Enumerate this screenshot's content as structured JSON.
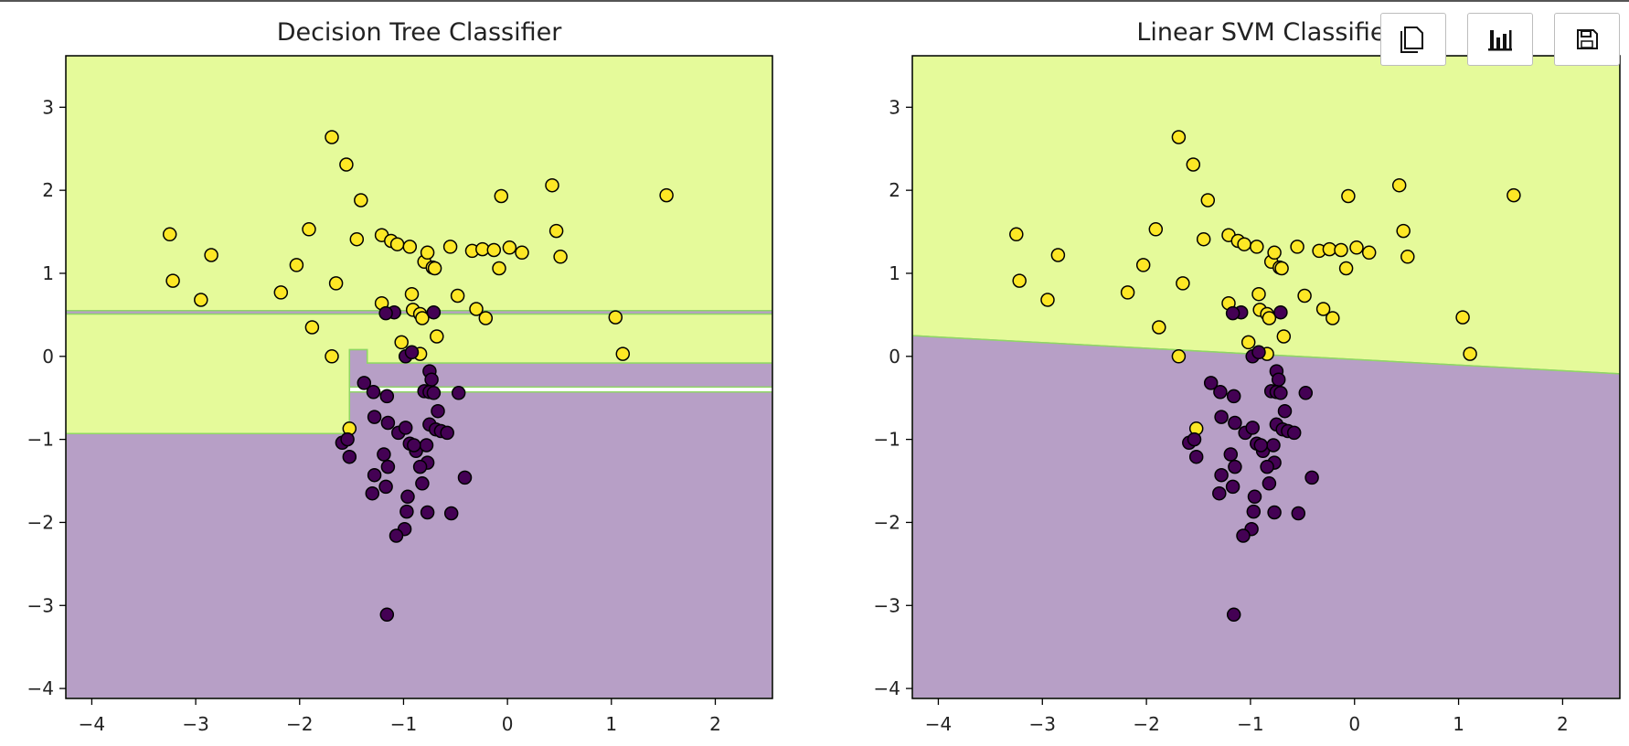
{
  "toolbar": {
    "buttons": [
      {
        "name": "copy-button",
        "icon": "copy-icon"
      },
      {
        "name": "chart-button",
        "icon": "bar-chart-icon"
      },
      {
        "name": "save-button",
        "icon": "floppy-disk-icon"
      }
    ]
  },
  "colors": {
    "class0_region": "#b79fc6",
    "class1_region": "#e5fa9a",
    "class0_point": "#440154",
    "class1_point": "#fde725",
    "boundary": "#8fd665",
    "point_edge": "#000000"
  },
  "chart_data": [
    {
      "type": "scatter",
      "title": "Decision Tree Classifier",
      "xlabel": "",
      "ylabel": "",
      "xlim": [
        -4.25,
        2.55
      ],
      "ylim": [
        -4.12,
        3.62
      ],
      "xticks": [
        -4,
        -3,
        -2,
        -1,
        0,
        1,
        2
      ],
      "xtick_labels": [
        "−4",
        "−3",
        "−2",
        "−1",
        "0",
        "1",
        "2"
      ],
      "yticks": [
        3,
        2,
        1,
        0,
        -1,
        -2,
        -3,
        -4
      ],
      "ytick_labels": [
        "3",
        "2",
        "1",
        "0",
        "−1",
        "−2",
        "−3",
        "−4"
      ],
      "grid": false,
      "decision_regions": [
        {
          "class": 1,
          "polygon": [
            [
              -4.25,
              3.62
            ],
            [
              2.55,
              3.62
            ],
            [
              2.55,
              -0.08
            ],
            [
              -1.35,
              -0.08
            ],
            [
              -1.35,
              0.08
            ],
            [
              -1.52,
              0.08
            ],
            [
              -1.52,
              -0.93
            ],
            [
              -4.25,
              -0.93
            ]
          ]
        },
        {
          "class": 0,
          "polygon": [
            [
              -4.25,
              -0.93
            ],
            [
              -1.52,
              -0.93
            ],
            [
              -1.52,
              -0.43
            ],
            [
              2.55,
              -0.43
            ],
            [
              2.55,
              -4.12
            ],
            [
              -4.25,
              -4.12
            ]
          ]
        },
        {
          "class": 0,
          "polygon": [
            [
              -1.52,
              -0.08
            ],
            [
              -1.52,
              0.08
            ],
            [
              -1.35,
              0.08
            ],
            [
              -1.35,
              -0.08
            ],
            [
              2.55,
              -0.08
            ],
            [
              2.55,
              -0.37
            ],
            [
              -1.52,
              -0.37
            ]
          ]
        },
        {
          "class": 0,
          "polygon": [
            [
              -4.25,
              0.55
            ],
            [
              2.55,
              0.55
            ],
            [
              2.55,
              0.51
            ],
            [
              -4.25,
              0.51
            ]
          ]
        }
      ],
      "points_class1": [
        [
          -3.25,
          1.47
        ],
        [
          -3.22,
          0.91
        ],
        [
          -2.95,
          0.68
        ],
        [
          -2.85,
          1.22
        ],
        [
          -2.18,
          0.77
        ],
        [
          -2.03,
          1.1
        ],
        [
          -1.91,
          1.53
        ],
        [
          -1.88,
          0.35
        ],
        [
          -1.69,
          2.64
        ],
        [
          -1.69,
          0.0
        ],
        [
          -1.65,
          0.88
        ],
        [
          -1.55,
          2.31
        ],
        [
          -1.45,
          1.41
        ],
        [
          -1.41,
          1.88
        ],
        [
          -1.52,
          -0.87
        ],
        [
          -1.21,
          1.46
        ],
        [
          -1.21,
          0.64
        ],
        [
          -1.12,
          1.39
        ],
        [
          -1.06,
          1.35
        ],
        [
          -0.94,
          1.32
        ],
        [
          -0.92,
          0.75
        ],
        [
          -0.91,
          0.56
        ],
        [
          -0.84,
          0.51
        ],
        [
          -0.82,
          0.46
        ],
        [
          -0.8,
          1.14
        ],
        [
          -0.77,
          1.25
        ],
        [
          -0.72,
          1.07
        ],
        [
          -0.7,
          1.06
        ],
        [
          -0.68,
          0.24
        ],
        [
          -0.55,
          1.32
        ],
        [
          -0.48,
          0.73
        ],
        [
          -0.34,
          1.27
        ],
        [
          -0.3,
          0.57
        ],
        [
          -0.24,
          1.29
        ],
        [
          -0.21,
          0.46
        ],
        [
          -0.13,
          1.28
        ],
        [
          -0.08,
          1.06
        ],
        [
          -0.06,
          1.93
        ],
        [
          0.02,
          1.31
        ],
        [
          0.14,
          1.25
        ],
        [
          0.43,
          2.06
        ],
        [
          0.47,
          1.51
        ],
        [
          0.51,
          1.2
        ],
        [
          1.04,
          0.47
        ],
        [
          1.11,
          0.03
        ],
        [
          1.53,
          1.94
        ],
        [
          -1.02,
          0.17
        ],
        [
          -0.84,
          0.03
        ]
      ],
      "points_class0": [
        [
          -1.09,
          0.53
        ],
        [
          -0.98,
          0.0
        ],
        [
          -0.92,
          0.05
        ],
        [
          -0.71,
          0.53
        ],
        [
          -1.17,
          0.52
        ],
        [
          -0.75,
          -0.18
        ],
        [
          -0.73,
          -0.28
        ],
        [
          -0.8,
          -0.42
        ],
        [
          -0.75,
          -0.43
        ],
        [
          -0.71,
          -0.44
        ],
        [
          -0.47,
          -0.44
        ],
        [
          -1.38,
          -0.32
        ],
        [
          -1.29,
          -0.43
        ],
        [
          -1.16,
          -0.48
        ],
        [
          -1.28,
          -0.73
        ],
        [
          -1.15,
          -0.8
        ],
        [
          -1.05,
          -0.92
        ],
        [
          -0.98,
          -0.86
        ],
        [
          -0.94,
          -1.05
        ],
        [
          -0.88,
          -1.14
        ],
        [
          -0.78,
          -1.07
        ],
        [
          -0.75,
          -0.82
        ],
        [
          -0.69,
          -0.88
        ],
        [
          -0.67,
          -0.66
        ],
        [
          -0.64,
          -0.9
        ],
        [
          -0.58,
          -0.92
        ],
        [
          -0.77,
          -1.28
        ],
        [
          -0.84,
          -1.33
        ],
        [
          -0.82,
          -1.53
        ],
        [
          -0.77,
          -1.88
        ],
        [
          -0.54,
          -1.89
        ],
        [
          -0.41,
          -1.46
        ],
        [
          -1.15,
          -1.33
        ],
        [
          -1.19,
          -1.18
        ],
        [
          -1.28,
          -1.43
        ],
        [
          -1.3,
          -1.65
        ],
        [
          -1.17,
          -1.57
        ],
        [
          -0.97,
          -1.87
        ],
        [
          -0.96,
          -1.69
        ],
        [
          -0.99,
          -2.08
        ],
        [
          -1.07,
          -2.16
        ],
        [
          -1.16,
          -3.11
        ],
        [
          -1.59,
          -1.04
        ],
        [
          -1.54,
          -1.0
        ],
        [
          -1.52,
          -1.21
        ],
        [
          -0.9,
          -1.07
        ]
      ]
    },
    {
      "type": "scatter",
      "title": "Linear SVM Classifier",
      "xlabel": "",
      "ylabel": "",
      "xlim": [
        -4.25,
        2.55
      ],
      "ylim": [
        -4.12,
        3.62
      ],
      "xticks": [
        -4,
        -3,
        -2,
        -1,
        0,
        1,
        2
      ],
      "xtick_labels": [
        "−4",
        "−3",
        "−2",
        "−1",
        "0",
        "1",
        "2"
      ],
      "yticks": [
        3,
        2,
        1,
        0,
        -1,
        -2,
        -3,
        -4
      ],
      "ytick_labels": [
        "3",
        "2",
        "1",
        "0",
        "−1",
        "−2",
        "−3",
        "−4"
      ],
      "grid": false,
      "decision_regions": [
        {
          "class": 1,
          "polygon": [
            [
              -4.25,
              3.62
            ],
            [
              2.55,
              3.62
            ],
            [
              2.55,
              -0.21
            ],
            [
              -4.25,
              0.25
            ]
          ]
        },
        {
          "class": 0,
          "polygon": [
            [
              -4.25,
              0.25
            ],
            [
              2.55,
              -0.21
            ],
            [
              2.55,
              -4.12
            ],
            [
              -4.25,
              -4.12
            ]
          ]
        }
      ],
      "points_class1": [
        [
          -3.25,
          1.47
        ],
        [
          -3.22,
          0.91
        ],
        [
          -2.95,
          0.68
        ],
        [
          -2.85,
          1.22
        ],
        [
          -2.18,
          0.77
        ],
        [
          -2.03,
          1.1
        ],
        [
          -1.91,
          1.53
        ],
        [
          -1.88,
          0.35
        ],
        [
          -1.69,
          2.64
        ],
        [
          -1.69,
          0.0
        ],
        [
          -1.65,
          0.88
        ],
        [
          -1.55,
          2.31
        ],
        [
          -1.45,
          1.41
        ],
        [
          -1.41,
          1.88
        ],
        [
          -1.52,
          -0.87
        ],
        [
          -1.21,
          1.46
        ],
        [
          -1.21,
          0.64
        ],
        [
          -1.12,
          1.39
        ],
        [
          -1.06,
          1.35
        ],
        [
          -0.94,
          1.32
        ],
        [
          -0.92,
          0.75
        ],
        [
          -0.91,
          0.56
        ],
        [
          -0.84,
          0.51
        ],
        [
          -0.82,
          0.46
        ],
        [
          -0.8,
          1.14
        ],
        [
          -0.77,
          1.25
        ],
        [
          -0.72,
          1.07
        ],
        [
          -0.7,
          1.06
        ],
        [
          -0.68,
          0.24
        ],
        [
          -0.55,
          1.32
        ],
        [
          -0.48,
          0.73
        ],
        [
          -0.34,
          1.27
        ],
        [
          -0.3,
          0.57
        ],
        [
          -0.24,
          1.29
        ],
        [
          -0.21,
          0.46
        ],
        [
          -0.13,
          1.28
        ],
        [
          -0.08,
          1.06
        ],
        [
          -0.06,
          1.93
        ],
        [
          0.02,
          1.31
        ],
        [
          0.14,
          1.25
        ],
        [
          0.43,
          2.06
        ],
        [
          0.47,
          1.51
        ],
        [
          0.51,
          1.2
        ],
        [
          1.04,
          0.47
        ],
        [
          1.11,
          0.03
        ],
        [
          1.53,
          1.94
        ],
        [
          -1.02,
          0.17
        ],
        [
          -0.84,
          0.03
        ]
      ],
      "points_class0": [
        [
          -1.09,
          0.53
        ],
        [
          -0.98,
          0.0
        ],
        [
          -0.92,
          0.05
        ],
        [
          -0.71,
          0.53
        ],
        [
          -1.17,
          0.52
        ],
        [
          -0.75,
          -0.18
        ],
        [
          -0.73,
          -0.28
        ],
        [
          -0.8,
          -0.42
        ],
        [
          -0.75,
          -0.43
        ],
        [
          -0.71,
          -0.44
        ],
        [
          -0.47,
          -0.44
        ],
        [
          -1.38,
          -0.32
        ],
        [
          -1.29,
          -0.43
        ],
        [
          -1.16,
          -0.48
        ],
        [
          -1.28,
          -0.73
        ],
        [
          -1.15,
          -0.8
        ],
        [
          -1.05,
          -0.92
        ],
        [
          -0.98,
          -0.86
        ],
        [
          -0.94,
          -1.05
        ],
        [
          -0.88,
          -1.14
        ],
        [
          -0.78,
          -1.07
        ],
        [
          -0.75,
          -0.82
        ],
        [
          -0.69,
          -0.88
        ],
        [
          -0.67,
          -0.66
        ],
        [
          -0.64,
          -0.9
        ],
        [
          -0.58,
          -0.92
        ],
        [
          -0.77,
          -1.28
        ],
        [
          -0.84,
          -1.33
        ],
        [
          -0.82,
          -1.53
        ],
        [
          -0.77,
          -1.88
        ],
        [
          -0.54,
          -1.89
        ],
        [
          -0.41,
          -1.46
        ],
        [
          -1.15,
          -1.33
        ],
        [
          -1.19,
          -1.18
        ],
        [
          -1.28,
          -1.43
        ],
        [
          -1.3,
          -1.65
        ],
        [
          -1.17,
          -1.57
        ],
        [
          -0.97,
          -1.87
        ],
        [
          -0.96,
          -1.69
        ],
        [
          -0.99,
          -2.08
        ],
        [
          -1.07,
          -2.16
        ],
        [
          -1.16,
          -3.11
        ],
        [
          -1.59,
          -1.04
        ],
        [
          -1.54,
          -1.0
        ],
        [
          -1.52,
          -1.21
        ],
        [
          -0.9,
          -1.07
        ]
      ]
    }
  ]
}
